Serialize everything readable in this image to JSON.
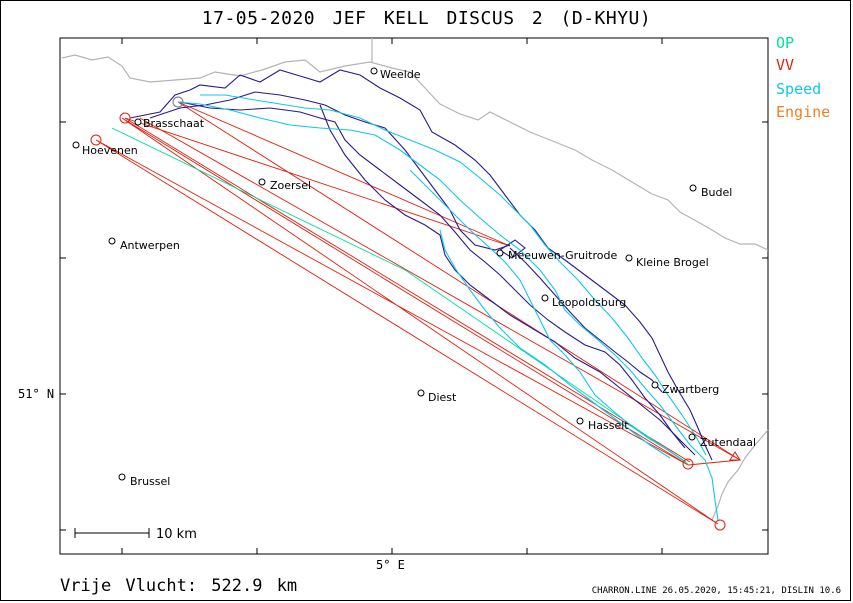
{
  "title": "17-05-2020   JEF KELL   DISCUS 2 (D-KHYU)",
  "legend": [
    {
      "label": "OP",
      "color": "#00e0a0"
    },
    {
      "label": "VV",
      "color": "#e02010"
    },
    {
      "label": "Speed",
      "color": "#10c8e8"
    },
    {
      "label": "Engine",
      "color": "#f08020"
    }
  ],
  "map": {
    "places": [
      {
        "name": "Weelde"
      },
      {
        "name": "Brasschaat"
      },
      {
        "name": "Hoevenen"
      },
      {
        "name": "Zoersel"
      },
      {
        "name": "Budel"
      },
      {
        "name": "Antwerpen"
      },
      {
        "name": "Kleine Brogel"
      },
      {
        "name": "Meeuwen-Gruitrode"
      },
      {
        "name": "Leopoldsburg"
      },
      {
        "name": "Zwartberg"
      },
      {
        "name": "Diest"
      },
      {
        "name": "Hasselt"
      },
      {
        "name": "Zutendaal"
      },
      {
        "name": "Brussel"
      }
    ],
    "lat_label": "51° N",
    "lon_label": "5° E",
    "scale_label": "10 km",
    "colors": {
      "track": "#2a1a8a",
      "speed": "#10c8e8",
      "task": "#e02010",
      "op": "#00e0a0",
      "border": "#b4b4b4"
    }
  },
  "distance": "Vrije Vlucht:  522.9 km",
  "footer": "CHARRON.LINE 26.05.2020, 15:45:21, DISLIN 10.6"
}
